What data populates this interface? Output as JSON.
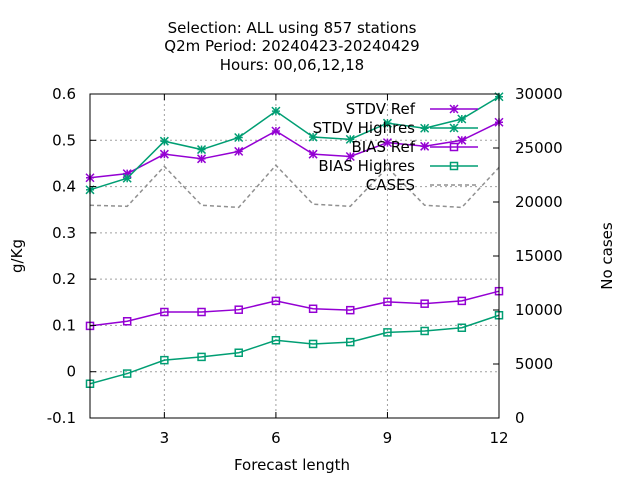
{
  "chart_data": {
    "type": "line",
    "title_lines": [
      "Selection: ALL using   857 stations",
      "Q2m   Period: 20240423-20240429",
      "Hours:  00,06,12,18"
    ],
    "xlabel": "Forecast length",
    "ylabel": "g/Kg",
    "y2label": "No cases",
    "x": [
      1,
      2,
      3,
      4,
      5,
      6,
      7,
      8,
      9,
      10,
      11,
      12
    ],
    "xlim": [
      1,
      12
    ],
    "ylim": [
      -0.1,
      0.6
    ],
    "y2lim": [
      0,
      30000
    ],
    "xticks": [
      "3",
      "6",
      "9",
      "12"
    ],
    "yticks": [
      "-0.1",
      "0",
      "0.1",
      "0.2",
      "0.3",
      "0.4",
      "0.5",
      "0.6"
    ],
    "y2ticks": [
      "0",
      "5000",
      "10000",
      "15000",
      "20000",
      "25000",
      "30000"
    ],
    "grid": true,
    "legend_position": "top-right",
    "series": [
      {
        "name": "STDV Ref",
        "color": "#9400d3",
        "marker": "star",
        "axis": "y1",
        "values": [
          0.419,
          0.428,
          0.47,
          0.46,
          0.476,
          0.52,
          0.47,
          0.465,
          0.495,
          0.487,
          0.5,
          0.539
        ]
      },
      {
        "name": "STDV Highres",
        "color": "#009e73",
        "marker": "star",
        "axis": "y1",
        "values": [
          0.393,
          0.418,
          0.498,
          0.48,
          0.506,
          0.563,
          0.507,
          0.502,
          0.537,
          0.526,
          0.546,
          0.594
        ]
      },
      {
        "name": "BIAS Ref",
        "color": "#9400d3",
        "marker": "square",
        "axis": "y1",
        "values": [
          0.099,
          0.109,
          0.129,
          0.129,
          0.134,
          0.153,
          0.136,
          0.133,
          0.151,
          0.147,
          0.153,
          0.174
        ]
      },
      {
        "name": "BIAS Highres",
        "color": "#009e73",
        "marker": "square",
        "axis": "y1",
        "values": [
          -0.026,
          -0.004,
          0.025,
          0.032,
          0.041,
          0.068,
          0.06,
          0.064,
          0.085,
          0.088,
          0.095,
          0.122
        ]
      },
      {
        "name": "CASES",
        "color": "#909090",
        "marker": "none",
        "dash": true,
        "axis": "y2",
        "values": [
          19700,
          19600,
          23300,
          19700,
          19500,
          23400,
          19800,
          19600,
          23200,
          19700,
          19500,
          23200
        ]
      }
    ]
  }
}
